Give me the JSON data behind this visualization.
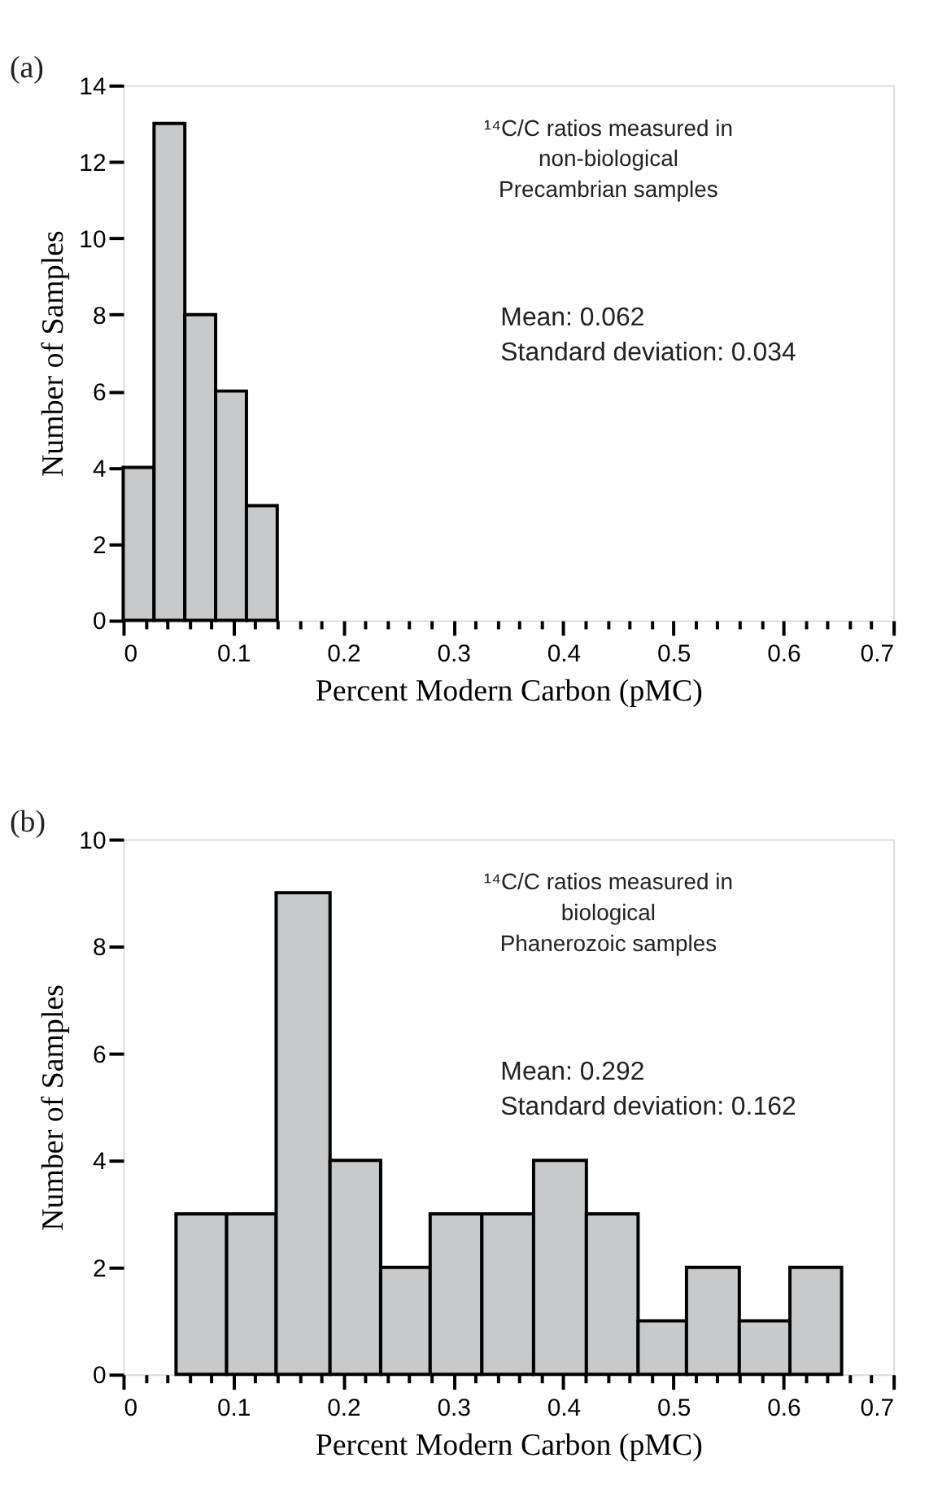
{
  "chart_data": [
    {
      "type": "histogram",
      "bins": [
        0,
        0.028,
        0.056,
        0.084,
        0.112,
        0.14
      ],
      "values": [
        4,
        13,
        8,
        6,
        3
      ],
      "color": "#c8c9cb",
      "xlabel": "Percent Modern Carbon (pMC)",
      "ylabel": "Number of Samples",
      "xlim": [
        0,
        0.7
      ],
      "ylim": [
        0,
        14
      ],
      "xticks": [
        0,
        {
          "value": 0.02,
          "label": null
        },
        {
          "value": 0.04,
          "label": null
        },
        {
          "value": 0.06,
          "label": null
        },
        {
          "value": 0.08,
          "label": null
        },
        0.1,
        {
          "value": 0.12,
          "label": null
        },
        {
          "value": 0.14,
          "label": null
        },
        {
          "value": 0.16,
          "label": null
        },
        {
          "value": 0.18,
          "label": null
        },
        0.2,
        {
          "value": 0.22,
          "label": null
        },
        {
          "value": 0.24,
          "label": null
        },
        {
          "value": 0.26,
          "label": null
        },
        {
          "value": 0.28,
          "label": null
        },
        0.3,
        {
          "value": 0.32,
          "label": null
        },
        {
          "value": 0.34,
          "label": null
        },
        {
          "value": 0.36,
          "label": null
        },
        {
          "value": 0.38,
          "label": null
        },
        0.4,
        {
          "value": 0.42,
          "label": null
        },
        {
          "value": 0.44,
          "label": null
        },
        {
          "value": 0.46,
          "label": null
        },
        {
          "value": 0.48,
          "label": null
        },
        0.5,
        {
          "value": 0.52,
          "label": null
        },
        {
          "value": 0.54,
          "label": null
        },
        {
          "value": 0.56,
          "label": null
        },
        {
          "value": 0.58,
          "label": null
        },
        0.6,
        {
          "value": 0.62,
          "label": null
        },
        {
          "value": 0.64,
          "label": null
        },
        {
          "value": 0.66,
          "label": null
        },
        {
          "value": 0.68,
          "label": null
        },
        0.7
      ],
      "yticks": [
        0,
        2,
        4,
        6,
        8,
        10,
        12,
        14
      ],
      "grid": false,
      "annotations": [
        "(a)",
        "¹⁴C/C ratios measured in\nnon-biological\nPrecambrian samples",
        "Mean: 0.062\nStandard deviation: 0.034"
      ]
    },
    {
      "type": "histogram",
      "bins": [
        0.048,
        0.094,
        0.139,
        0.188,
        0.234,
        0.279,
        0.326,
        0.373,
        0.421,
        0.468,
        0.512,
        0.56,
        0.606,
        0.653
      ],
      "values": [
        3,
        3,
        9,
        4,
        2,
        3,
        3,
        4,
        3,
        1,
        2,
        1,
        2
      ],
      "color": "#c8c9cb",
      "xlabel": "Percent Modern Carbon (pMC)",
      "ylabel": "Number of Samples",
      "xlim": [
        0,
        0.7
      ],
      "ylim": [
        0,
        10
      ],
      "xticks": [
        0,
        {
          "value": 0.02,
          "label": null
        },
        {
          "value": 0.04,
          "label": null
        },
        {
          "value": 0.06,
          "label": null
        },
        {
          "value": 0.08,
          "label": null
        },
        0.1,
        {
          "value": 0.12,
          "label": null
        },
        {
          "value": 0.14,
          "label": null
        },
        {
          "value": 0.16,
          "label": null
        },
        {
          "value": 0.18,
          "label": null
        },
        0.2,
        {
          "value": 0.22,
          "label": null
        },
        {
          "value": 0.24,
          "label": null
        },
        {
          "value": 0.26,
          "label": null
        },
        {
          "value": 0.28,
          "label": null
        },
        0.3,
        {
          "value": 0.32,
          "label": null
        },
        {
          "value": 0.34,
          "label": null
        },
        {
          "value": 0.36,
          "label": null
        },
        {
          "value": 0.38,
          "label": null
        },
        0.4,
        {
          "value": 0.42,
          "label": null
        },
        {
          "value": 0.44,
          "label": null
        },
        {
          "value": 0.46,
          "label": null
        },
        {
          "value": 0.48,
          "label": null
        },
        0.5,
        {
          "value": 0.52,
          "label": null
        },
        {
          "value": 0.54,
          "label": null
        },
        {
          "value": 0.56,
          "label": null
        },
        {
          "value": 0.58,
          "label": null
        },
        0.6,
        {
          "value": 0.62,
          "label": null
        },
        {
          "value": 0.64,
          "label": null
        },
        {
          "value": 0.66,
          "label": null
        },
        {
          "value": 0.68,
          "label": null
        },
        0.7
      ],
      "yticks": [
        0,
        2,
        4,
        6,
        8,
        10
      ],
      "grid": false,
      "annotations": [
        "(b)",
        "¹⁴C/C ratios measured in\nbiological\nPhanerozoic samples",
        "Mean: 0.292\nStandard deviation: 0.162"
      ]
    }
  ]
}
